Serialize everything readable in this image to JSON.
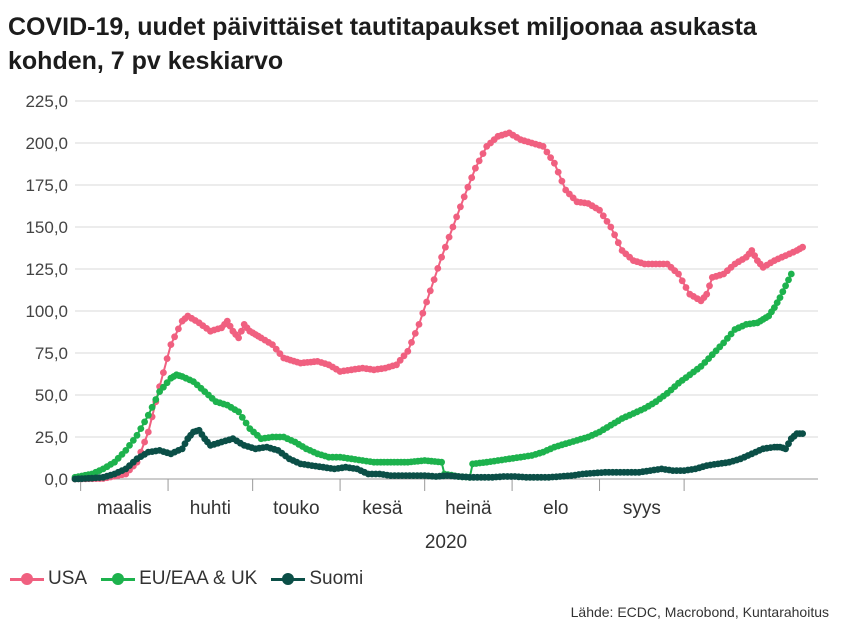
{
  "chart_data": {
    "type": "line",
    "title": "COVID-19, uudet päivittäiset tautitapaukset miljoonaa asukasta kohden, 7 pv keskiarvo",
    "xlabel": "2020",
    "ylabel": "",
    "ylim": [
      0,
      225
    ],
    "y_ticks": [
      "0,0",
      "25,0",
      "50,0",
      "75,0",
      "100,0",
      "125,0",
      "150,0",
      "175,0",
      "200,0",
      "225,0"
    ],
    "month_labels": [
      "maalis",
      "huhti",
      "touko",
      "kesä",
      "heinä",
      "elo",
      "syys"
    ],
    "x_unit": "days since 2020-02-28",
    "grid": true,
    "legend_position": "bottom-left",
    "source": "Lähde: ECDC, Macrobond, Kuntarahoitus",
    "series": [
      {
        "name": "USA",
        "color": "#f06080",
        "points": [
          [
            0,
            0
          ],
          [
            10,
            0.3
          ],
          [
            18,
            3
          ],
          [
            22,
            10
          ],
          [
            26,
            28
          ],
          [
            30,
            55
          ],
          [
            34,
            80
          ],
          [
            38,
            94
          ],
          [
            40,
            97
          ],
          [
            44,
            93
          ],
          [
            48,
            88
          ],
          [
            52,
            90
          ],
          [
            54,
            94
          ],
          [
            56,
            88
          ],
          [
            58,
            84
          ],
          [
            60,
            92
          ],
          [
            62,
            88
          ],
          [
            64,
            86
          ],
          [
            66,
            84
          ],
          [
            70,
            80
          ],
          [
            74,
            72
          ],
          [
            80,
            69
          ],
          [
            86,
            70
          ],
          [
            90,
            68
          ],
          [
            94,
            64
          ],
          [
            98,
            65
          ],
          [
            102,
            66
          ],
          [
            106,
            65
          ],
          [
            110,
            66
          ],
          [
            114,
            68
          ],
          [
            118,
            76
          ],
          [
            122,
            92
          ],
          [
            126,
            112
          ],
          [
            130,
            132
          ],
          [
            134,
            150
          ],
          [
            138,
            168
          ],
          [
            142,
            185
          ],
          [
            146,
            198
          ],
          [
            150,
            204
          ],
          [
            154,
            206
          ],
          [
            158,
            202
          ],
          [
            162,
            200
          ],
          [
            166,
            198
          ],
          [
            170,
            188
          ],
          [
            174,
            172
          ],
          [
            178,
            165
          ],
          [
            182,
            164
          ],
          [
            186,
            160
          ],
          [
            190,
            150
          ],
          [
            194,
            136
          ],
          [
            198,
            130
          ],
          [
            202,
            128
          ],
          [
            206,
            128
          ],
          [
            210,
            128
          ],
          [
            214,
            122
          ],
          [
            218,
            110
          ],
          [
            222,
            106
          ],
          [
            224,
            110
          ],
          [
            226,
            120
          ],
          [
            230,
            122
          ],
          [
            234,
            128
          ],
          [
            238,
            132
          ],
          [
            240,
            136
          ],
          [
            242,
            130
          ],
          [
            244,
            126
          ],
          [
            248,
            130
          ],
          [
            252,
            133
          ],
          [
            256,
            136
          ],
          [
            258,
            138
          ]
        ]
      },
      {
        "name": "EU/EAA & UK",
        "color": "#1db24d",
        "points": [
          [
            0,
            1
          ],
          [
            6,
            3
          ],
          [
            10,
            6
          ],
          [
            14,
            10
          ],
          [
            18,
            17
          ],
          [
            22,
            26
          ],
          [
            26,
            38
          ],
          [
            30,
            52
          ],
          [
            34,
            60
          ],
          [
            36,
            62
          ],
          [
            38,
            61
          ],
          [
            42,
            58
          ],
          [
            46,
            52
          ],
          [
            50,
            46
          ],
          [
            54,
            44
          ],
          [
            58,
            40
          ],
          [
            62,
            30
          ],
          [
            66,
            24
          ],
          [
            70,
            25
          ],
          [
            74,
            25
          ],
          [
            78,
            22
          ],
          [
            82,
            18
          ],
          [
            86,
            15
          ],
          [
            90,
            13
          ],
          [
            94,
            13
          ],
          [
            98,
            12
          ],
          [
            102,
            11
          ],
          [
            106,
            10
          ],
          [
            112,
            10
          ],
          [
            118,
            10
          ],
          [
            124,
            11
          ],
          [
            130,
            10
          ],
          [
            131,
            3
          ],
          [
            136,
            1.5
          ],
          [
            140,
            1
          ],
          [
            141,
            9
          ],
          [
            146,
            10
          ],
          [
            150,
            11
          ],
          [
            154,
            12
          ],
          [
            158,
            13
          ],
          [
            162,
            14
          ],
          [
            166,
            16
          ],
          [
            170,
            19
          ],
          [
            174,
            21
          ],
          [
            178,
            23
          ],
          [
            182,
            25
          ],
          [
            186,
            28
          ],
          [
            190,
            32
          ],
          [
            194,
            36
          ],
          [
            198,
            39
          ],
          [
            202,
            42
          ],
          [
            206,
            46
          ],
          [
            210,
            51
          ],
          [
            214,
            57
          ],
          [
            218,
            62
          ],
          [
            222,
            67
          ],
          [
            226,
            74
          ],
          [
            230,
            81
          ],
          [
            234,
            89
          ],
          [
            238,
            92
          ],
          [
            242,
            93
          ],
          [
            244,
            95
          ],
          [
            246,
            97
          ],
          [
            248,
            102
          ],
          [
            250,
            108
          ],
          [
            252,
            115
          ],
          [
            254,
            122
          ]
        ]
      },
      {
        "name": "Suomi",
        "color": "#0b4f47",
        "points": [
          [
            0,
            0
          ],
          [
            6,
            0.5
          ],
          [
            10,
            1
          ],
          [
            14,
            3
          ],
          [
            18,
            6
          ],
          [
            22,
            12
          ],
          [
            26,
            16
          ],
          [
            30,
            17
          ],
          [
            34,
            15
          ],
          [
            38,
            18
          ],
          [
            40,
            24
          ],
          [
            42,
            28
          ],
          [
            44,
            29
          ],
          [
            46,
            24
          ],
          [
            48,
            20
          ],
          [
            52,
            22
          ],
          [
            56,
            24
          ],
          [
            60,
            20
          ],
          [
            64,
            18
          ],
          [
            68,
            19
          ],
          [
            72,
            17
          ],
          [
            76,
            12
          ],
          [
            80,
            9
          ],
          [
            84,
            8
          ],
          [
            88,
            7
          ],
          [
            92,
            6
          ],
          [
            96,
            7
          ],
          [
            100,
            6
          ],
          [
            104,
            3
          ],
          [
            108,
            3
          ],
          [
            112,
            2
          ],
          [
            116,
            2
          ],
          [
            120,
            2
          ],
          [
            124,
            2
          ],
          [
            128,
            1.5
          ],
          [
            132,
            2
          ],
          [
            136,
            1.5
          ],
          [
            140,
            1
          ],
          [
            144,
            1
          ],
          [
            148,
            1
          ],
          [
            152,
            1.5
          ],
          [
            156,
            1.5
          ],
          [
            160,
            1
          ],
          [
            164,
            1
          ],
          [
            168,
            1
          ],
          [
            172,
            1.5
          ],
          [
            176,
            2
          ],
          [
            180,
            3
          ],
          [
            184,
            3.5
          ],
          [
            188,
            4
          ],
          [
            192,
            4
          ],
          [
            196,
            4
          ],
          [
            200,
            4
          ],
          [
            204,
            5
          ],
          [
            208,
            6
          ],
          [
            212,
            5
          ],
          [
            216,
            5
          ],
          [
            220,
            6
          ],
          [
            224,
            8
          ],
          [
            228,
            9
          ],
          [
            232,
            10
          ],
          [
            236,
            12
          ],
          [
            240,
            15
          ],
          [
            244,
            18
          ],
          [
            248,
            19
          ],
          [
            250,
            19
          ],
          [
            252,
            18
          ],
          [
            254,
            24
          ],
          [
            256,
            27
          ],
          [
            258,
            27
          ]
        ]
      }
    ]
  }
}
